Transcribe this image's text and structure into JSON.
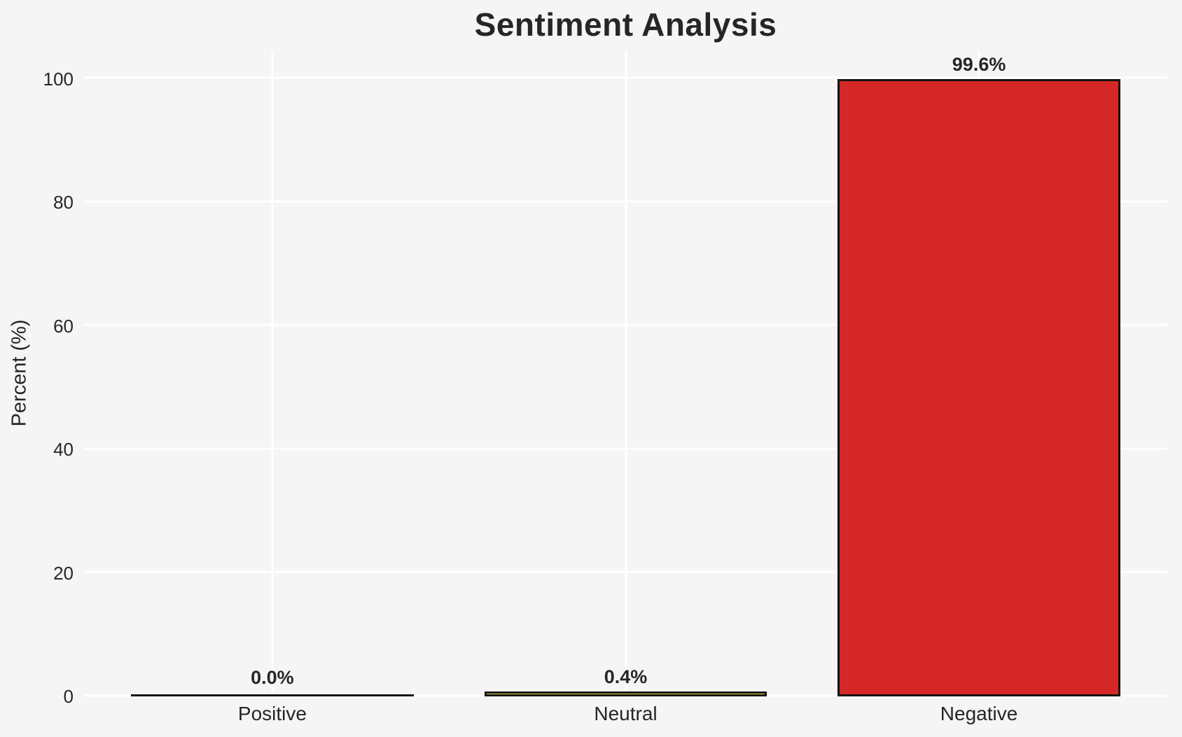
{
  "chart_data": {
    "type": "bar",
    "title": "Sentiment Analysis",
    "xlabel": "",
    "ylabel": "Percent (%)",
    "categories": [
      "Positive",
      "Neutral",
      "Negative"
    ],
    "values": [
      0.0,
      0.4,
      99.6
    ],
    "value_labels": [
      "0.0%",
      "0.4%",
      "99.6%"
    ],
    "bar_colors": [
      "#2ca02c",
      "#f0e442",
      "#d62728"
    ],
    "bar_edge_color": "#131313",
    "bar_width": 0.8,
    "yticks": [
      0,
      20,
      40,
      60,
      80,
      100
    ],
    "ytick_labels": [
      "0",
      "20",
      "40",
      "60",
      "80",
      "100"
    ],
    "ylim": [
      0,
      104.6
    ],
    "xlim": [
      -0.533,
      2.533
    ],
    "grid": "on",
    "legend": "none",
    "grid_color": "#ffffff",
    "background_color": "#f5f5f6",
    "text_color": "#262626"
  }
}
